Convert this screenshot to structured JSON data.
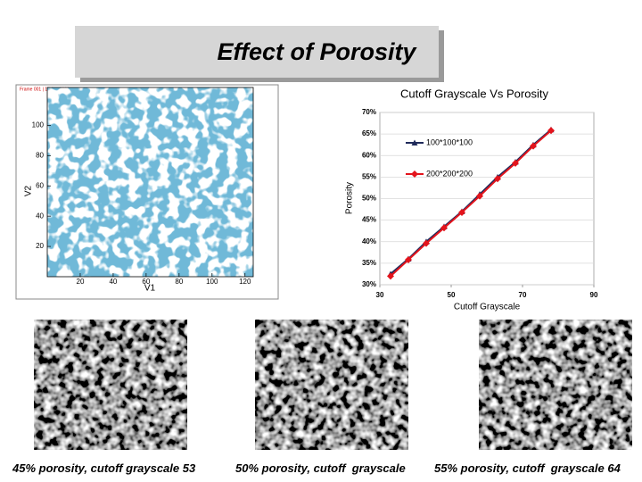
{
  "title": "Effect of Porosity",
  "contour_plot": {
    "header": "Frame 001 | 17 Jun 2008",
    "xlabel": "V1",
    "ylabel": "V2",
    "xlim": [
      0,
      125
    ],
    "ylim": [
      0,
      125
    ],
    "xticks": [
      20,
      40,
      60,
      80,
      100,
      120
    ],
    "yticks": [
      20,
      40,
      60,
      80,
      100
    ]
  },
  "chart_data": {
    "type": "line",
    "title": "Cutoff Grayscale Vs Porosity",
    "xlabel": "Cutoff Grayscale",
    "ylabel": "Porosity",
    "x": [
      33,
      38,
      43,
      48,
      53,
      58,
      63,
      68,
      73,
      78
    ],
    "series": [
      {
        "name": "100*100*100",
        "color": "#1f2a5a",
        "marker": "triangle",
        "values": [
          32.5,
          36,
          40,
          43.5,
          47,
          51,
          55,
          58.5,
          62.5,
          66
        ]
      },
      {
        "name": "200*200*200",
        "color": "#e3141c",
        "marker": "diamond",
        "values": [
          32,
          35.8,
          39.6,
          43.2,
          46.8,
          50.6,
          54.6,
          58.2,
          62.2,
          65.8
        ]
      }
    ],
    "xlim": [
      30,
      90
    ],
    "ylim": [
      30,
      70
    ],
    "xticks": [
      30,
      50,
      70,
      90
    ],
    "yticks": [
      {
        "value": 30,
        "label": "30%"
      },
      {
        "value": 35,
        "label": "35%"
      },
      {
        "value": 40,
        "label": "40%"
      },
      {
        "value": 45,
        "label": "45%"
      },
      {
        "value": 50,
        "label": "50%"
      },
      {
        "value": 55,
        "label": "55%"
      },
      {
        "value": 60,
        "label": "60%"
      },
      {
        "value": 65,
        "label": "65%"
      },
      {
        "value": 70,
        "label": "70%"
      }
    ],
    "grid": true
  },
  "captions": [
    "45% porosity, cutoff grayscale 53",
    "50% porosity, cutoff  grayscale",
    "55% porosity, cutoff  grayscale 64"
  ]
}
